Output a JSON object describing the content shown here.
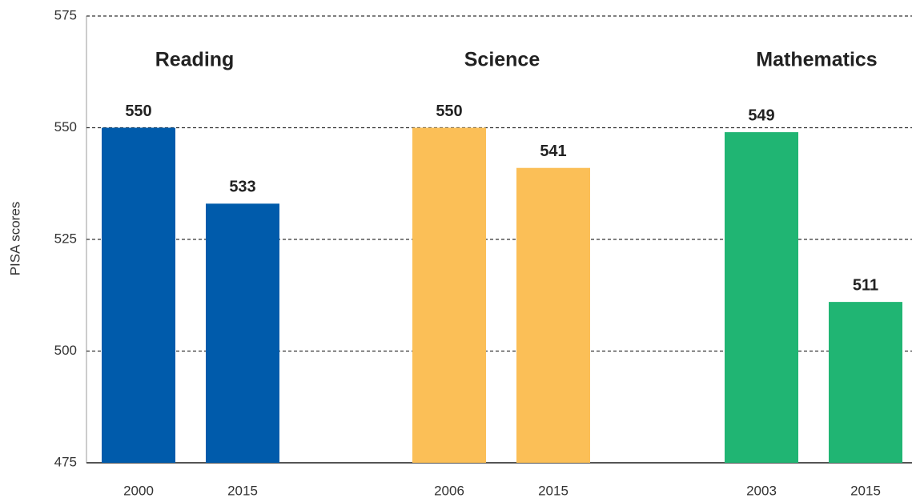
{
  "chart_data": {
    "type": "bar",
    "y_label": "PISA scores",
    "groups": [
      {
        "name": "Reading",
        "color": "#005bab",
        "categories": [
          "2000",
          "2015"
        ],
        "values": [
          550,
          533
        ]
      },
      {
        "name": "Science",
        "color": "#fbbf57",
        "categories": [
          "2006",
          "2015"
        ],
        "values": [
          550,
          541
        ]
      },
      {
        "name": "Mathematics",
        "color": "#20b573",
        "categories": [
          "2003",
          "2015"
        ],
        "values": [
          549,
          511
        ]
      }
    ],
    "ylim": [
      475,
      575
    ],
    "yticks": [
      475,
      500,
      525,
      550,
      575
    ],
    "grid": true
  }
}
